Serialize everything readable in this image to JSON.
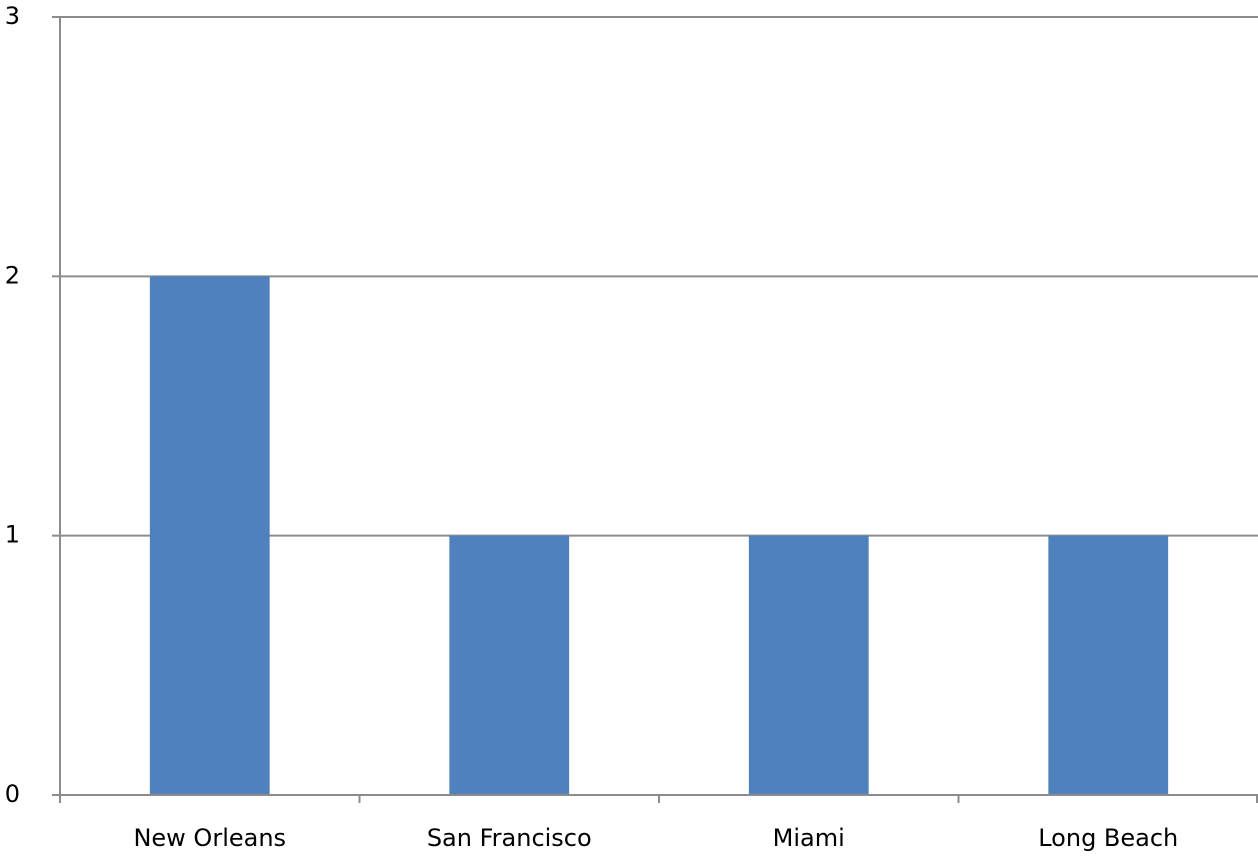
{
  "chart_data": {
    "type": "bar",
    "categories": [
      "New Orleans",
      "San Francisco",
      "Miami",
      "Long Beach"
    ],
    "values": [
      2,
      1,
      1,
      1
    ],
    "color": "#4f81bd",
    "ylim": [
      0,
      3
    ],
    "yticks": [
      0,
      1,
      2,
      3
    ],
    "grid": true
  }
}
